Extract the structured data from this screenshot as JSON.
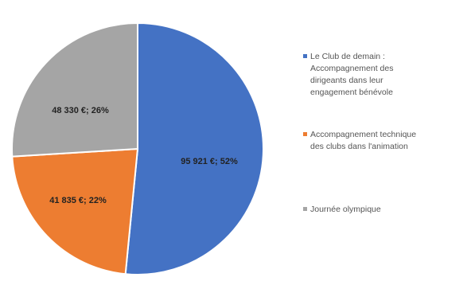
{
  "chart_data": {
    "type": "pie",
    "slices": [
      {
        "name": "Le Club de demain : Accompagnement des dirigeants dans leur engagement bénévole",
        "legend_lines": [
          "Le Club de demain :",
          "Accompagnement des",
          "dirigeants dans leur",
          "engagement bénévole"
        ],
        "value": 95921,
        "percent": 52,
        "label": "95 921 €; 52%",
        "color": "#4472C4"
      },
      {
        "name": "Accompagnement technique des clubs dans l'animation",
        "legend_lines": [
          "Accompagnement technique",
          "des clubs dans l'animation"
        ],
        "value": 41835,
        "percent": 22,
        "label": "41 835 €; 22%",
        "color": "#ED7D31"
      },
      {
        "name": "Journée olympique",
        "legend_lines": [
          "Journée olympique"
        ],
        "value": 48330,
        "percent": 26,
        "label": "48 330 €; 26%",
        "color": "#A5A5A5"
      }
    ],
    "start_angle": "12 o'clock",
    "direction": "clockwise",
    "legend_position": "right",
    "title": ""
  }
}
